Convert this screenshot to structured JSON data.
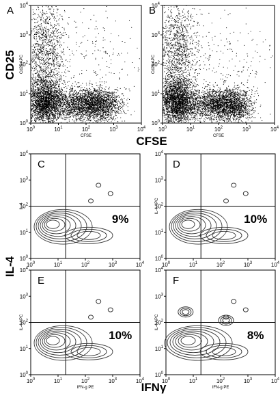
{
  "figure": {
    "y_label_top": "CD25",
    "x_label_top": "CFSE",
    "y_label_bottom": "IL-4",
    "x_label_bottom": "IFNγ",
    "ticks": [
      {
        "base": "10",
        "exp": "0"
      },
      {
        "base": "10",
        "exp": "1"
      },
      {
        "base": "10",
        "exp": "2"
      },
      {
        "base": "10",
        "exp": "3"
      },
      {
        "base": "10",
        "exp": "4"
      }
    ],
    "panels": [
      {
        "label": "A",
        "x_axis": "CFSE",
        "y_axis": "Cd25 APC"
      },
      {
        "label": "B",
        "x_axis": "CFSE",
        "y_axis": "Cd25 APC"
      },
      {
        "label": "C",
        "y_axis": "IL-4",
        "percent": "9%"
      },
      {
        "label": "D",
        "y_axis": "IL-4 APC",
        "percent": "10%"
      },
      {
        "label": "E",
        "x_axis": "IFN-g PE",
        "y_axis": "IL-4 APC",
        "percent": "10%"
      },
      {
        "label": "F",
        "x_axis": "IFN-g PE",
        "y_axis": "IL-4 APC",
        "percent": "8%"
      }
    ]
  }
}
